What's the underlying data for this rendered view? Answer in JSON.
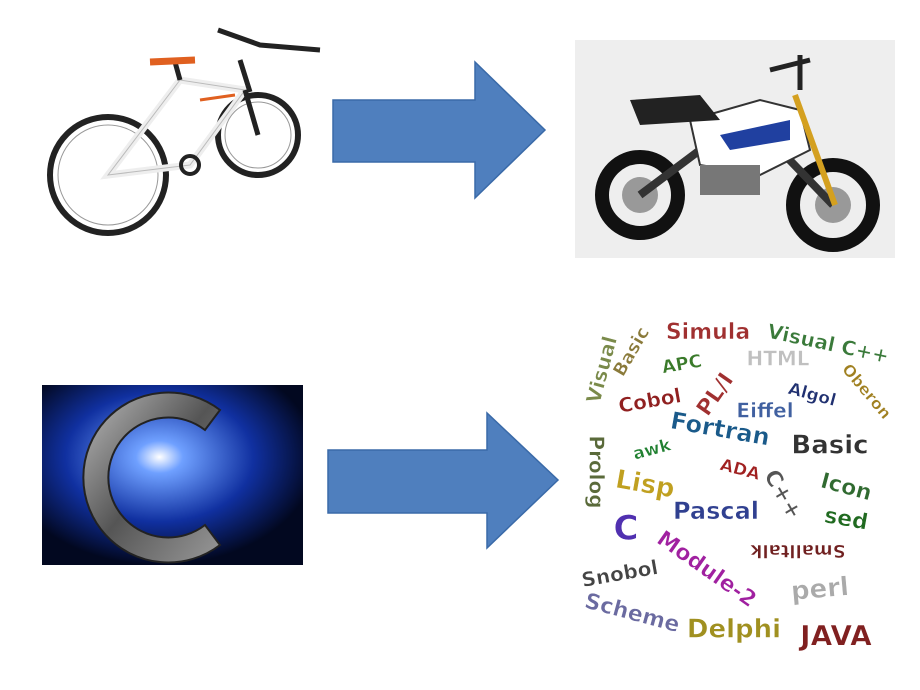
{
  "word_cloud": {
    "words": [
      "Visual",
      "Basic",
      "Simula",
      "Visual C++",
      "APC",
      "HTML",
      "PL/I",
      "Cobol",
      "Algol",
      "Oberon",
      "Eiffel",
      "Fortran",
      "Basic",
      "Prolog",
      "awk",
      "ADA",
      "Icon",
      "Lisp",
      "C++",
      "Pascal",
      "sed",
      "C",
      "Module-2",
      "Smalltalk",
      "Snobol",
      "perl",
      "Scheme",
      "Delphi",
      "JAVA"
    ]
  }
}
